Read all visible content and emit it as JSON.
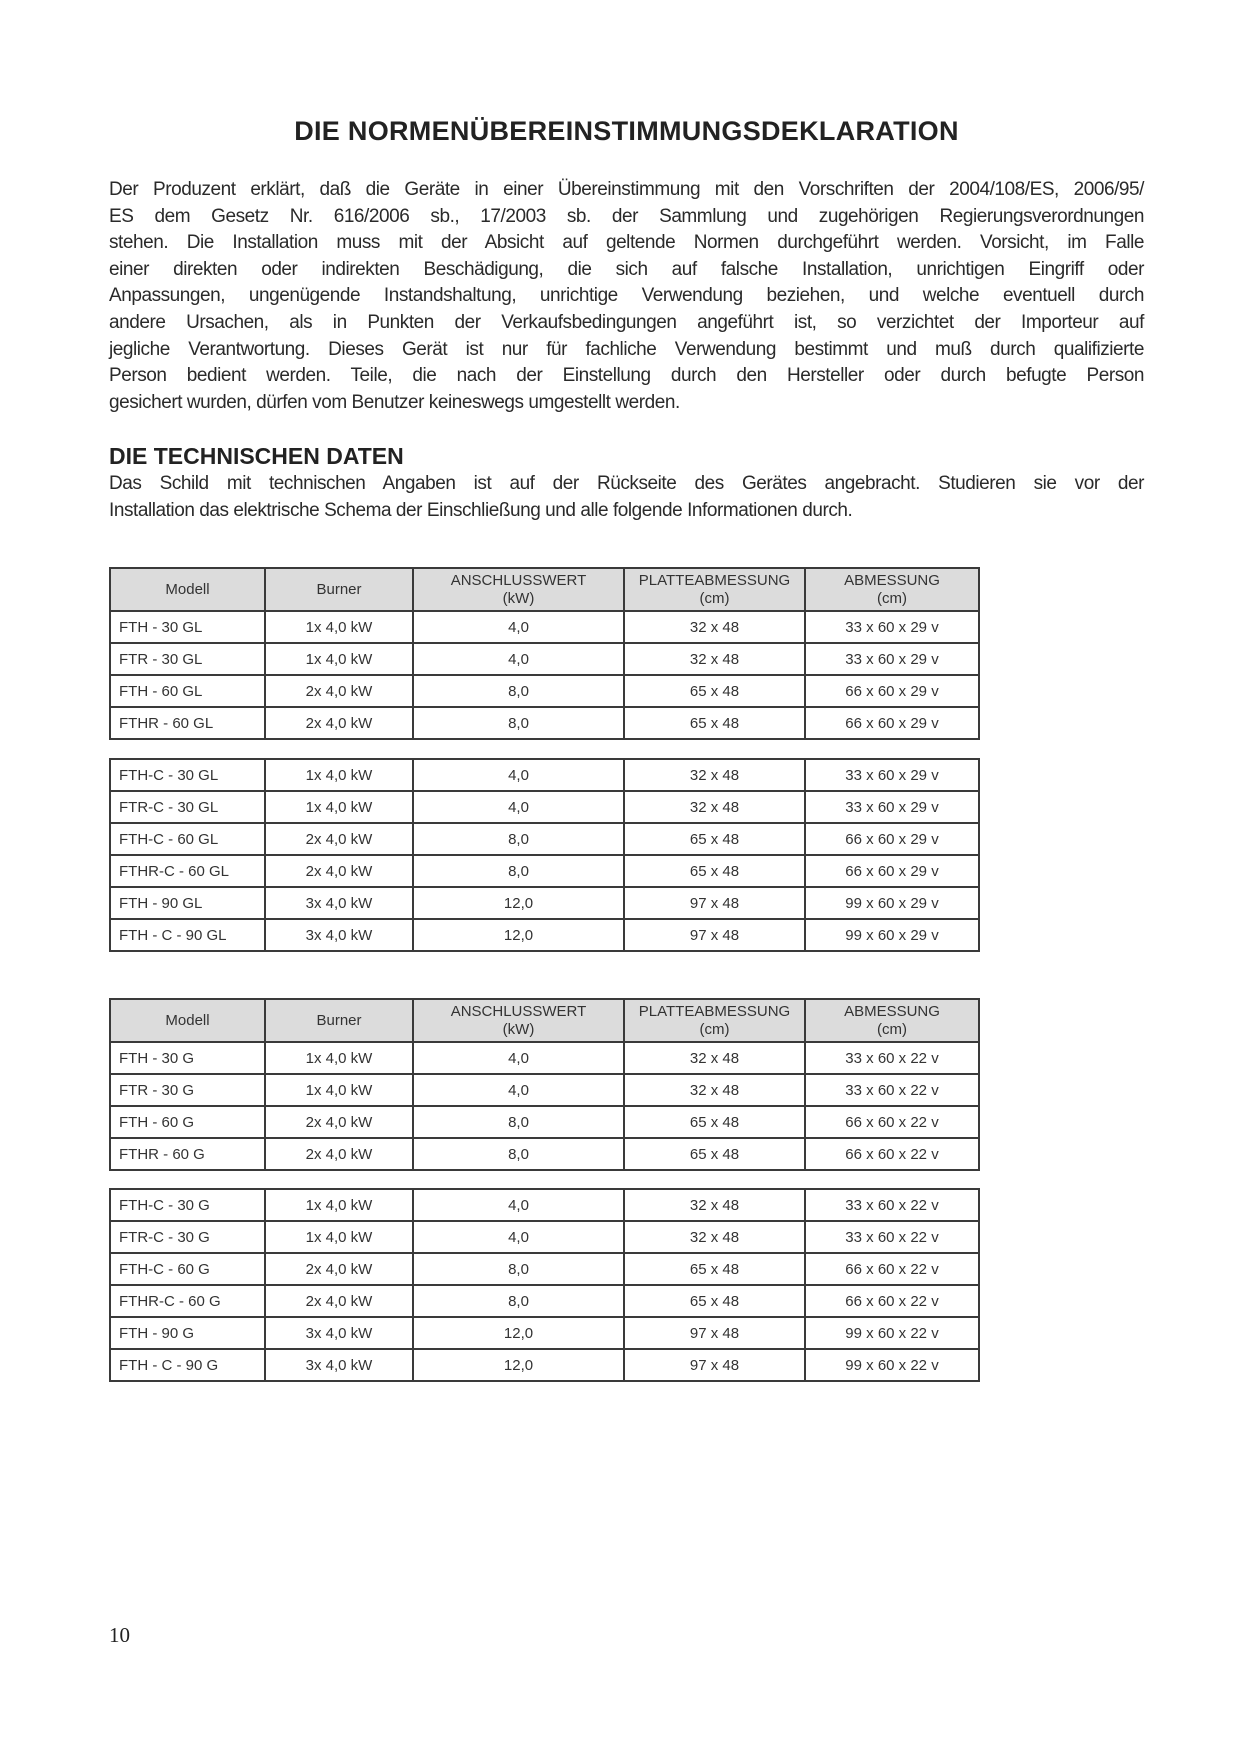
{
  "title": "DIE NORMENÜBEREINSTIMMUNGSDEKLARATION",
  "declaration_lines": [
    "Der Produzent erklärt, daß die Geräte in einer Übereinstimmung mit den Vorschriften der 2004/108/ES, 2006/95/",
    "ES dem Gesetz Nr. 616/2006 sb., 17/2003 sb. der Sammlung und zugehörigen Regierungsverordnungen",
    "stehen. Die Installation muss mit der Absicht auf geltende Normen durchgeführt werden. Vorsicht, im Falle",
    "einer direkten oder indirekten Beschädigung, die sich auf falsche Installation, unrichtigen Eingriff oder",
    "Anpassungen, ungenügende Instandshaltung, unrichtige Verwendung beziehen, und welche eventuell durch",
    "andere Ursachen, als in Punkten der Verkaufsbedingungen angeführt ist, so verzichtet der Importeur auf",
    "jegliche Verantwortung. Dieses Gerät ist nur für fachliche Verwendung bestimmt und muß durch qualifizierte",
    "Person bedient werden. Teile, die nach der Einstellung durch den Hersteller oder durch befugte Person",
    "gesichert wurden, dürfen vom Benutzer keineswegs umgestellt werden."
  ],
  "tech_heading": "DIE TECHNISCHEN DATEN",
  "tech_lines": [
    "Das Schild mit technischen Angaben ist auf der Rückseite des Gerätes angebracht. Studieren sie vor der",
    "Installation das elektrische Schema der Einschließung und alle folgende Informationen durch."
  ],
  "headers": [
    [
      "Modell"
    ],
    [
      "Burner"
    ],
    [
      "ANSCHLUSSWERT",
      "(kW)"
    ],
    [
      "PLATTEABMESSUNG",
      "(cm)"
    ],
    [
      "ABMESSUNG",
      "(cm)"
    ]
  ],
  "tables": [
    {
      "groups": [
        [
          [
            "FTH - 30 GL",
            "1x 4,0 kW",
            "4,0",
            "32 x 48",
            "33 x 60 x 29 v"
          ],
          [
            "FTR - 30 GL",
            "1x 4,0 kW",
            "4,0",
            "32 x 48",
            "33 x 60 x 29 v"
          ],
          [
            "FTH - 60 GL",
            "2x 4,0 kW",
            "8,0",
            "65 x 48",
            "66 x 60 x 29 v"
          ],
          [
            "FTHR - 60 GL",
            "2x 4,0 kW",
            "8,0",
            "65 x 48",
            "66 x 60 x 29 v"
          ]
        ],
        [
          [
            "FTH-C - 30 GL",
            "1x 4,0 kW",
            "4,0",
            "32 x 48",
            "33 x 60 x 29 v"
          ],
          [
            "FTR-C - 30 GL",
            "1x 4,0 kW",
            "4,0",
            "32 x 48",
            "33 x 60 x 29 v"
          ],
          [
            "FTH-C - 60 GL",
            "2x 4,0 kW",
            "8,0",
            "65 x 48",
            "66 x 60 x 29 v"
          ],
          [
            "FTHR-C - 60 GL",
            "2x 4,0 kW",
            "8,0",
            "65 x 48",
            "66 x 60 x 29 v"
          ],
          [
            "FTH - 90 GL",
            "3x 4,0 kW",
            "12,0",
            "97 x 48",
            "99 x 60 x 29 v"
          ],
          [
            "FTH - C - 90 GL",
            "3x 4,0 kW",
            "12,0",
            "97 x 48",
            "99 x 60 x 29 v"
          ]
        ]
      ]
    },
    {
      "groups": [
        [
          [
            "FTH - 30 G",
            "1x 4,0 kW",
            "4,0",
            "32 x 48",
            "33 x 60 x 22 v"
          ],
          [
            "FTR - 30 G",
            "1x 4,0 kW",
            "4,0",
            "32 x 48",
            "33 x 60 x 22 v"
          ],
          [
            "FTH - 60 G",
            "2x 4,0 kW",
            "8,0",
            "65 x 48",
            "66 x 60 x 22 v"
          ],
          [
            "FTHR - 60 G",
            "2x 4,0 kW",
            "8,0",
            "65 x 48",
            "66 x 60 x 22 v"
          ]
        ],
        [
          [
            "FTH-C - 30 G",
            "1x 4,0 kW",
            "4,0",
            "32 x 48",
            "33 x 60 x 22 v"
          ],
          [
            "FTR-C - 30 G",
            "1x 4,0 kW",
            "4,0",
            "32 x 48",
            "33 x 60 x 22 v"
          ],
          [
            "FTH-C - 60 G",
            "2x 4,0 kW",
            "8,0",
            "65 x 48",
            "66 x 60 x 22 v"
          ],
          [
            "FTHR-C - 60 G",
            "2x 4,0 kW",
            "8,0",
            "65 x 48",
            "66 x 60 x 22 v"
          ],
          [
            "FTH - 90 G",
            "3x 4,0 kW",
            "12,0",
            "97 x 48",
            "99 x 60 x 22 v"
          ],
          [
            "FTH - C - 90 G",
            "3x 4,0 kW",
            "12,0",
            "97 x 48",
            "99 x 60 x 22 v"
          ]
        ]
      ]
    }
  ],
  "page_number": "10"
}
